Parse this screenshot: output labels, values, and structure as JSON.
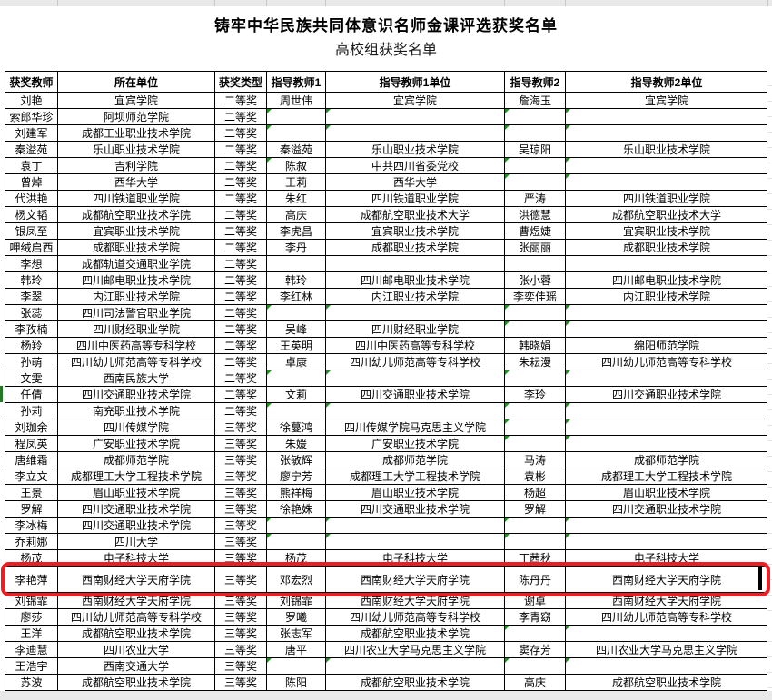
{
  "sheet": {
    "title": "铸牢中华民族共同体意识名师金课评选获奖名单",
    "subtitle": "高校组获奖名单"
  },
  "table": {
    "columns": [
      "获奖教师",
      "所在单位",
      "获奖类型",
      "指导教师1",
      "指导教师1单位",
      "指导教师2",
      "指导教师2单位"
    ],
    "rows": [
      {
        "cells": [
          "刘艳",
          "宜宾学院",
          "二等奖",
          "周世伟",
          "宜宾学院",
          "詹海玉",
          "宜宾学院"
        ]
      },
      {
        "cells": [
          "索郎华珍",
          "阿坝师范学院",
          "二等奖",
          "",
          "",
          "",
          ""
        ],
        "green": [
          3,
          4,
          5,
          6
        ]
      },
      {
        "cells": [
          "刘建军",
          "成都工业职业技术学院",
          "二等奖",
          "",
          "",
          "",
          ""
        ],
        "green": [
          3,
          4,
          5,
          6
        ]
      },
      {
        "cells": [
          "秦溢苑",
          "乐山职业技术学院",
          "二等奖",
          "秦溢苑",
          "乐山职业技术学院",
          "吴琼阳",
          "乐山职业技术学院"
        ]
      },
      {
        "cells": [
          "袁丁",
          "吉利学院",
          "二等奖",
          "陈叙",
          "中共四川省委党校",
          "",
          ""
        ],
        "green": [
          3,
          5,
          6
        ]
      },
      {
        "cells": [
          "曾焯",
          "西华大学",
          "二等奖",
          "王莉",
          "西华大学",
          "",
          ""
        ],
        "green": [
          5,
          6
        ]
      },
      {
        "cells": [
          "代洪艳",
          "四川铁道职业学院",
          "二等奖",
          "朱红",
          "四川铁道职业学院",
          "严涛",
          "四川铁道职业学院"
        ]
      },
      {
        "cells": [
          "杨文韬",
          "成都航空职业技术学院",
          "二等奖",
          "高庆",
          "成都航空职业技术大学",
          "洪德慧",
          "成都航空职业技术大学"
        ]
      },
      {
        "cells": [
          "银凤至",
          "宜宾职业技术学院",
          "二等奖",
          "李虎昌",
          "宜宾职业技术学院",
          "曹煜婕",
          "宜宾职业技术学院"
        ]
      },
      {
        "cells": [
          "呷绒启西",
          "成都职业技术学院",
          "二等奖",
          "李丹",
          "成都职业技术学院",
          "张丽丽",
          "成都职业技术学院"
        ]
      },
      {
        "cells": [
          "李想",
          "成都轨道交通职业学院",
          "二等奖",
          "",
          "",
          "",
          ""
        ]
      },
      {
        "cells": [
          "韩玲",
          "四川邮电职业技术学院",
          "二等奖",
          "韩玲",
          "四川邮电职业技术学院",
          "张小蓉",
          "四川邮电职业技术学院"
        ]
      },
      {
        "cells": [
          "李翠",
          "内江职业技术学院",
          "二等奖",
          "李红林",
          "内江职业技术学院",
          "李奕佳瑶",
          "内江职业技术学院"
        ]
      },
      {
        "cells": [
          "张蕊",
          "四川司法警官职业学院",
          "二等奖",
          "",
          "",
          "",
          ""
        ],
        "green": [
          3,
          4,
          5,
          6
        ]
      },
      {
        "cells": [
          "李孜楠",
          "四川财经职业学院",
          "二等奖",
          "吴峰",
          "四川财经职业学院",
          "",
          ""
        ],
        "green": [
          5,
          6
        ]
      },
      {
        "cells": [
          "杨羚",
          "四川中医药高等专科学校",
          "二等奖",
          "王英明",
          "四川中医药高等专科学校",
          "韩晓娟",
          "绵阳师范学院"
        ]
      },
      {
        "cells": [
          "孙萌",
          "四川幼儿师范高等专科学校",
          "二等奖",
          "卓康",
          "四川幼儿师范高等专科学校",
          "朱耘漫",
          "四川幼儿师范高等专科学校"
        ]
      },
      {
        "cells": [
          "文雯",
          "西南民族大学",
          "二等奖",
          "",
          "",
          "",
          ""
        ],
        "green": [
          3,
          4,
          5,
          6
        ]
      },
      {
        "cells": [
          "任倩",
          "四川交通职业技术学院",
          "二等奖",
          "文莉",
          "四川交通职业技术学院",
          "李玲",
          "四川交通职业技术学院"
        ],
        "left_mark": true
      },
      {
        "cells": [
          "孙莉",
          "南充职业技术学院",
          "二等奖",
          "",
          "",
          "",
          ""
        ],
        "green": [
          3,
          4,
          5,
          6
        ]
      },
      {
        "cells": [
          "刘珈余",
          "四川传媒学院",
          "三等奖",
          "徐蔓鸿",
          "四川传媒学院马克思主义学院",
          "",
          ""
        ],
        "green": [
          5,
          6
        ]
      },
      {
        "cells": [
          "程凤英",
          "广安职业技术学院",
          "三等奖",
          "朱媛",
          "广安职业技术学院",
          "",
          ""
        ],
        "green": [
          5,
          6
        ]
      },
      {
        "cells": [
          "唐维霜",
          "成都师范学院",
          "三等奖",
          "张敏辉",
          "成都师范学院",
          "马涛",
          "成都师范学院"
        ]
      },
      {
        "cells": [
          "李立文",
          "成都理工大学工程技术学院",
          "三等奖",
          "廖宁芳",
          "成都理工大学工程技术学院",
          "袁彬",
          "成都理工大学工程技术学院"
        ]
      },
      {
        "cells": [
          "王景",
          "眉山职业技术学院",
          "三等奖",
          "熊祥梅",
          "眉山职业技术学院",
          "杨超",
          "眉山职业技术学院"
        ]
      },
      {
        "cells": [
          "罗解",
          "四川交通职业技术学院",
          "三等奖",
          "徐艳姝",
          "四川交通职业技术学院",
          "罗解",
          "四川交通职业技术学院"
        ]
      },
      {
        "cells": [
          "李冰梅",
          "四川交通职业技术学院",
          "三等奖",
          "",
          "",
          "",
          ""
        ],
        "green": [
          3,
          4,
          5,
          6
        ]
      },
      {
        "cells": [
          "乔莉娜",
          "四川大学",
          "三等奖",
          "",
          "",
          "",
          ""
        ],
        "green": [
          3,
          4,
          5,
          6
        ]
      },
      {
        "cells": [
          "杨茂",
          "电子科技大学",
          "三等奖",
          "杨茂",
          "电子科技大学",
          "丁茜秋",
          "电子科技大学"
        ]
      },
      {
        "cells": [
          "李艳萍",
          "西南财经大学天府学院",
          "三等奖",
          "邓宏烈",
          "西南财经大学天府学院",
          "陈丹丹",
          "西南财经大学天府学院"
        ],
        "highlight": true
      },
      {
        "cells": [
          "刘锦霏",
          "西南财经大学天府学院",
          "三等奖",
          "刘锦霏",
          "西南财经大学天府学院",
          "谢卓",
          "西南财经大学天府学院"
        ]
      },
      {
        "cells": [
          "廖莎",
          "四川幼儿师范高等专科学校",
          "三等奖",
          "罗曦",
          "四川幼儿师范高等专科学校",
          "李青窈",
          "四川幼儿师范高等专科学校"
        ]
      },
      {
        "cells": [
          "王洋",
          "成都航空职业技术学院",
          "三等奖",
          "张志军",
          "成都航空职业技术学院",
          "",
          ""
        ],
        "green": [
          5,
          6
        ]
      },
      {
        "cells": [
          "李迪慧",
          "四川农业大学",
          "三等奖",
          "唐平",
          "四川农业大学马克思主义学院",
          "窦存芳",
          "四川农业大学马克思主义学院"
        ]
      },
      {
        "cells": [
          "王浩宇",
          "西南交通大学",
          "三等奖",
          "",
          "",
          "",
          ""
        ],
        "green": [
          3,
          4,
          5,
          6
        ]
      },
      {
        "cells": [
          "苏波",
          "成都航空职业技术学院",
          "三等奖",
          "陈阳",
          "成都航空职业技术学院",
          "高庆",
          "成都航空职业技术学院"
        ]
      }
    ]
  },
  "colors": {
    "highlight_box": "#ee1d23",
    "error_indicator_green": "#1f8f1f",
    "gridline_gray": "#c9c9c9"
  }
}
